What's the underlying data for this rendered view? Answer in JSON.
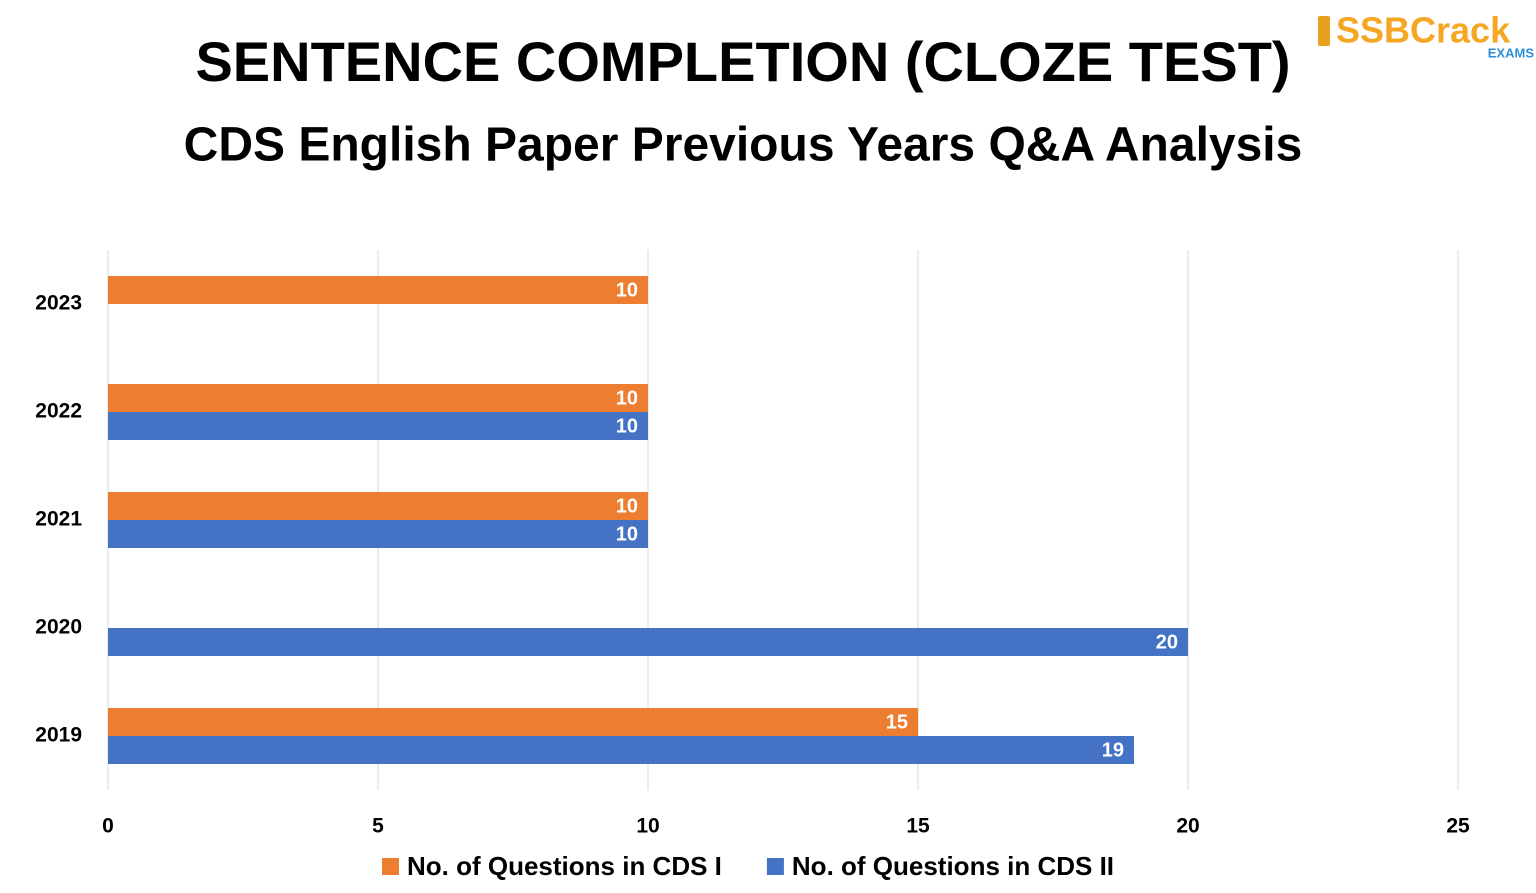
{
  "logo": {
    "text": "SSBCrack",
    "subtext": "EXAMS"
  },
  "chart_data": {
    "type": "hbar",
    "title": "SENTENCE COMPLETION (CLOZE TEST)",
    "subtitle": "CDS English Paper Previous Years Q&A Analysis",
    "categories": [
      "2023",
      "2022",
      "2021",
      "2020",
      "2019"
    ],
    "series": [
      {
        "name": "No. of Questions in CDS I",
        "color": "#ed7d31",
        "values": [
          10,
          10,
          10,
          null,
          15
        ]
      },
      {
        "name": "No. of Questions in CDS II",
        "color": "#4472c4",
        "values": [
          null,
          10,
          10,
          20,
          19
        ]
      }
    ],
    "xlim": [
      0,
      25
    ],
    "xticks": [
      0,
      5,
      10,
      15,
      20,
      25
    ],
    "grid": true,
    "legend": "bottom"
  }
}
